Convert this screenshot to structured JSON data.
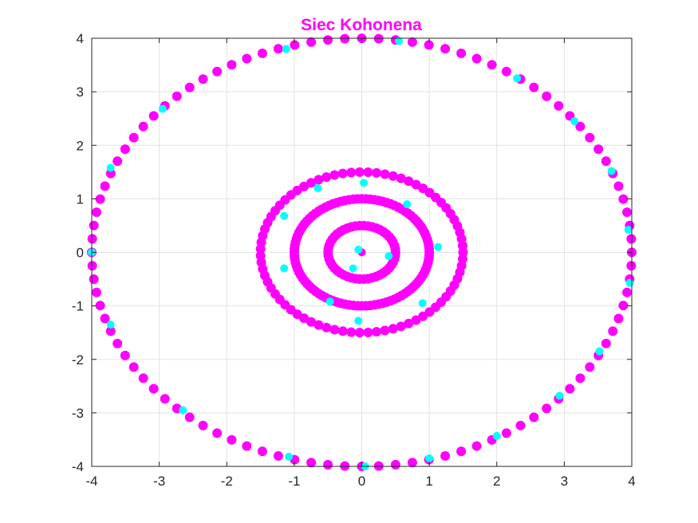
{
  "chart_data": {
    "type": "scatter",
    "title": "Siec Kohonena",
    "xlabel": "",
    "ylabel": "",
    "xlim": [
      -4,
      4
    ],
    "ylim": [
      -4,
      4
    ],
    "xticks": [
      "-4",
      "-3",
      "-2",
      "-1",
      "0",
      "1",
      "2",
      "3",
      "4"
    ],
    "yticks": [
      "-4",
      "-3",
      "-2",
      "-1",
      "0",
      "1",
      "2",
      "3",
      "4"
    ],
    "grid": true,
    "legend": "none",
    "colors": {
      "title": "#ff00ff",
      "data": "#ff00ff",
      "neurons": "#00ffff"
    },
    "series": [
      {
        "role": "data",
        "color": "#ff00ff",
        "shape": "circles",
        "circles": [
          {
            "cx": 0,
            "cy": 0,
            "r": 0.5,
            "count": 50
          },
          {
            "cx": 0,
            "cy": 0,
            "r": 1.0,
            "count": 100
          },
          {
            "cx": 0,
            "cy": 0,
            "r": 1.5,
            "count": 75
          },
          {
            "cx": 0,
            "cy": 0,
            "r": 4.0,
            "count": 100
          }
        ],
        "points": [
          [
            0,
            0
          ]
        ]
      },
      {
        "role": "neurons",
        "color": "#00ffff",
        "points": [
          [
            -1.12,
            3.8
          ],
          [
            0.55,
            3.95
          ],
          [
            2.3,
            3.25
          ],
          [
            3.15,
            2.45
          ],
          [
            3.7,
            1.52
          ],
          [
            3.95,
            0.42
          ],
          [
            3.97,
            -0.57
          ],
          [
            3.52,
            -1.85
          ],
          [
            2.93,
            -2.68
          ],
          [
            2.0,
            -3.43
          ],
          [
            1.0,
            -3.85
          ],
          [
            0.05,
            -4.0
          ],
          [
            -1.08,
            -3.82
          ],
          [
            -2.65,
            -2.95
          ],
          [
            -3.72,
            -1.35
          ],
          [
            -4.0,
            0.0
          ],
          [
            -3.72,
            1.58
          ],
          [
            -2.95,
            2.68
          ],
          [
            0.03,
            1.3
          ],
          [
            0.67,
            0.9
          ],
          [
            1.13,
            0.1
          ],
          [
            0.9,
            -0.95
          ],
          [
            -0.05,
            -1.28
          ],
          [
            -0.47,
            -0.92
          ],
          [
            -1.15,
            -0.3
          ],
          [
            -1.15,
            0.68
          ],
          [
            -0.65,
            1.2
          ],
          [
            -0.05,
            0.05
          ],
          [
            -0.13,
            -0.3
          ],
          [
            0.4,
            -0.07
          ]
        ]
      }
    ]
  }
}
